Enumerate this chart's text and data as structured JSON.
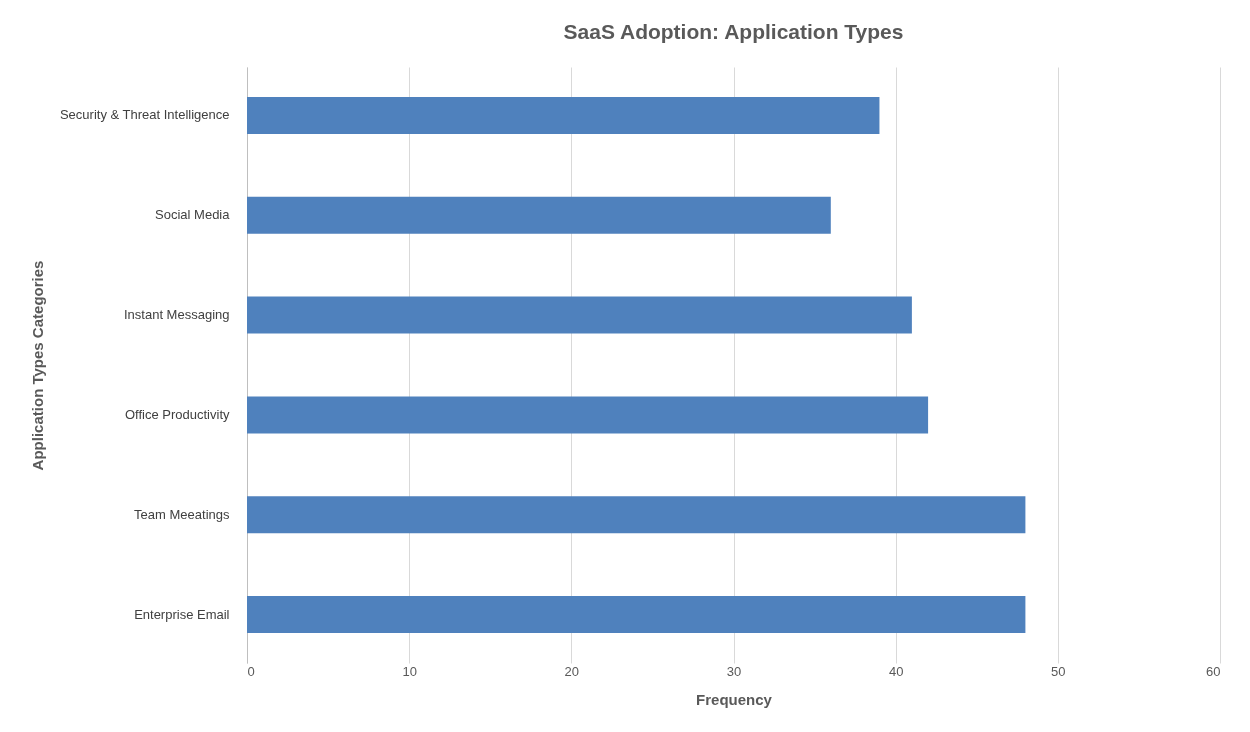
{
  "chart_data": {
    "type": "bar",
    "orientation": "horizontal",
    "title": "SaaS Adoption: Application Types",
    "xlabel": "Frequency",
    "ylabel": "Application Types Categories",
    "categories": [
      "Security & Threat Intelligence",
      "Social Media",
      "Instant Messaging",
      "Office Productivity",
      "Team Meeatings",
      "Enterprise Email"
    ],
    "values": [
      39,
      36,
      41,
      42,
      48,
      48
    ],
    "color": "#4f81bd",
    "xlim": [
      0,
      60
    ],
    "xticks": [
      0,
      10,
      20,
      30,
      40,
      50,
      60
    ],
    "grid": "x"
  }
}
